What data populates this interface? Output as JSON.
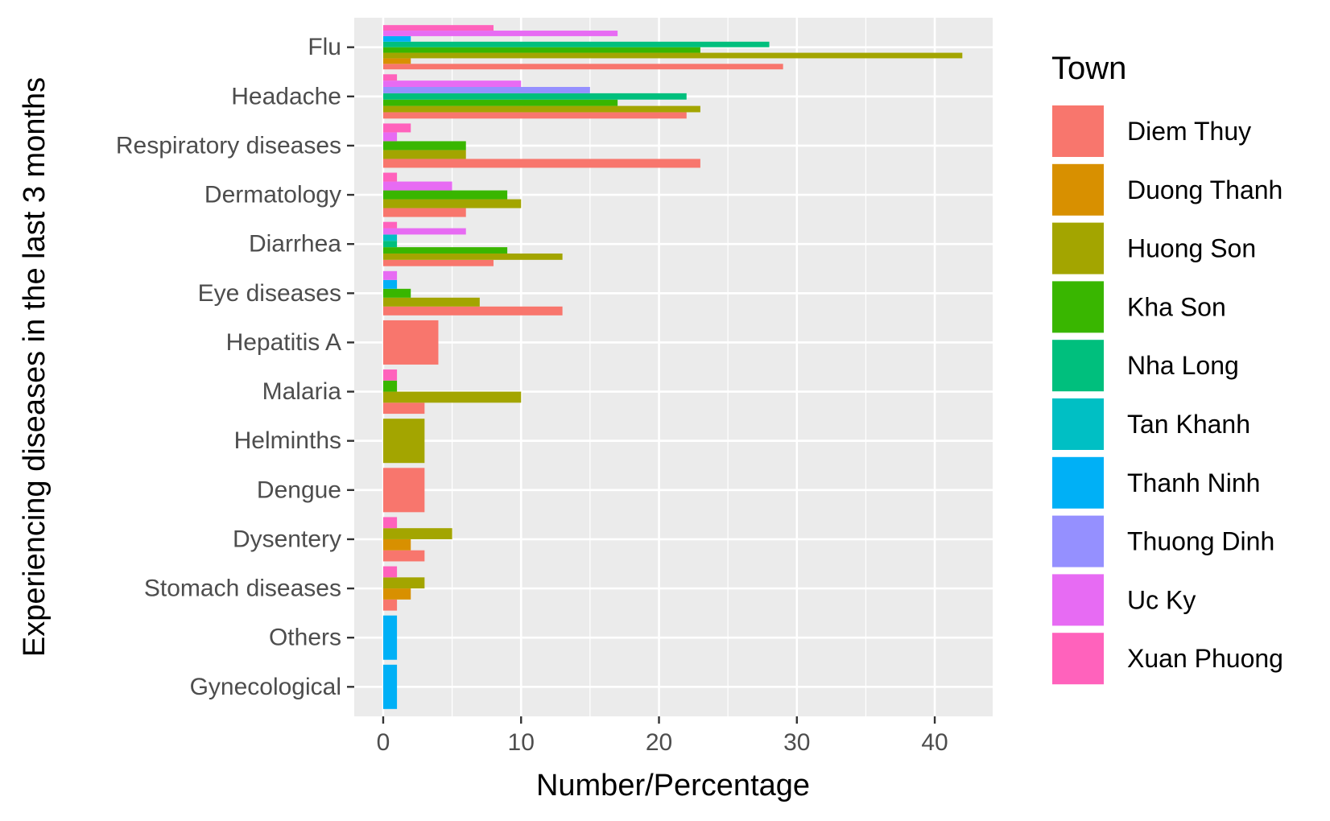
{
  "chart_data": {
    "type": "bar",
    "orientation": "horizontal",
    "xlabel": "Number/Percentage",
    "ylabel": "Experiencing diseases in the last 3 months",
    "xlim": [
      -2.1,
      44.2
    ],
    "xticks": [
      0,
      10,
      20,
      30,
      40
    ],
    "grid": true,
    "legend": {
      "title": "Town",
      "position": "right",
      "entries": [
        {
          "name": "Diem Thuy",
          "color": "#F8766D"
        },
        {
          "name": "Duong Thanh",
          "color": "#D89000"
        },
        {
          "name": "Huong Son",
          "color": "#A3A500"
        },
        {
          "name": "Kha Son",
          "color": "#39B600"
        },
        {
          "name": "Nha Long",
          "color": "#00BF7D"
        },
        {
          "name": "Tan Khanh",
          "color": "#00BFC4"
        },
        {
          "name": "Thanh Ninh",
          "color": "#00B0F6"
        },
        {
          "name": "Thuong Dinh",
          "color": "#9590FF"
        },
        {
          "name": "Uc Ky",
          "color": "#E76BF3"
        },
        {
          "name": "Xuan Phuong",
          "color": "#FF62BC"
        }
      ]
    },
    "categories": [
      {
        "label": "Flu",
        "bars": [
          {
            "town": "Diem Thuy",
            "value": 29
          },
          {
            "town": "Duong Thanh",
            "value": 2
          },
          {
            "town": "Huong Son",
            "value": 42
          },
          {
            "town": "Kha Son",
            "value": 23
          },
          {
            "town": "Nha Long",
            "value": 28
          },
          {
            "town": "Thanh Ninh",
            "value": 2
          },
          {
            "town": "Uc Ky",
            "value": 17
          },
          {
            "town": "Xuan Phuong",
            "value": 8
          }
        ]
      },
      {
        "label": "Headache",
        "bars": [
          {
            "town": "Diem Thuy",
            "value": 22
          },
          {
            "town": "Huong Son",
            "value": 23
          },
          {
            "town": "Kha Son",
            "value": 17
          },
          {
            "town": "Nha Long",
            "value": 22
          },
          {
            "town": "Thuong Dinh",
            "value": 15
          },
          {
            "town": "Uc Ky",
            "value": 10
          },
          {
            "town": "Xuan Phuong",
            "value": 1
          }
        ]
      },
      {
        "label": "Respiratory diseases",
        "bars": [
          {
            "town": "Diem Thuy",
            "value": 23
          },
          {
            "town": "Huong Son",
            "value": 6
          },
          {
            "town": "Kha Son",
            "value": 6
          },
          {
            "town": "Uc Ky",
            "value": 1
          },
          {
            "town": "Xuan Phuong",
            "value": 2
          }
        ]
      },
      {
        "label": "Dermatology",
        "bars": [
          {
            "town": "Diem Thuy",
            "value": 6
          },
          {
            "town": "Huong Son",
            "value": 10
          },
          {
            "town": "Kha Son",
            "value": 9
          },
          {
            "town": "Uc Ky",
            "value": 5
          },
          {
            "town": "Xuan Phuong",
            "value": 1
          }
        ]
      },
      {
        "label": "Diarrhea",
        "bars": [
          {
            "town": "Diem Thuy",
            "value": 8
          },
          {
            "town": "Huong Son",
            "value": 13
          },
          {
            "town": "Kha Son",
            "value": 9
          },
          {
            "town": "Nha Long",
            "value": 1
          },
          {
            "town": "Tan Khanh",
            "value": 1
          },
          {
            "town": "Uc Ky",
            "value": 6
          },
          {
            "town": "Xuan Phuong",
            "value": 1
          }
        ]
      },
      {
        "label": "Eye diseases",
        "bars": [
          {
            "town": "Diem Thuy",
            "value": 13
          },
          {
            "town": "Huong Son",
            "value": 7
          },
          {
            "town": "Kha Son",
            "value": 2
          },
          {
            "town": "Thanh Ninh",
            "value": 1
          },
          {
            "town": "Uc Ky",
            "value": 1
          }
        ]
      },
      {
        "label": "Hepatitis A",
        "bars": [
          {
            "town": "Diem Thuy",
            "value": 4
          }
        ]
      },
      {
        "label": "Malaria",
        "bars": [
          {
            "town": "Diem Thuy",
            "value": 3
          },
          {
            "town": "Huong Son",
            "value": 10
          },
          {
            "town": "Kha Son",
            "value": 1
          },
          {
            "town": "Xuan Phuong",
            "value": 1
          }
        ]
      },
      {
        "label": "Helminths",
        "bars": [
          {
            "town": "Huong Son",
            "value": 3
          }
        ]
      },
      {
        "label": "Dengue",
        "bars": [
          {
            "town": "Diem Thuy",
            "value": 3
          }
        ]
      },
      {
        "label": "Dysentery",
        "bars": [
          {
            "town": "Diem Thuy",
            "value": 3
          },
          {
            "town": "Duong Thanh",
            "value": 2
          },
          {
            "town": "Huong Son",
            "value": 5
          },
          {
            "town": "Xuan Phuong",
            "value": 1
          }
        ]
      },
      {
        "label": "Stomach diseases",
        "bars": [
          {
            "town": "Diem Thuy",
            "value": 1
          },
          {
            "town": "Duong Thanh",
            "value": 2
          },
          {
            "town": "Huong Son",
            "value": 3
          },
          {
            "town": "Xuan Phuong",
            "value": 1
          }
        ]
      },
      {
        "label": "Others",
        "bars": [
          {
            "town": "Thanh Ninh",
            "value": 1
          }
        ]
      },
      {
        "label": "Gynecological",
        "bars": [
          {
            "town": "Thanh Ninh",
            "value": 1
          }
        ]
      }
    ]
  }
}
